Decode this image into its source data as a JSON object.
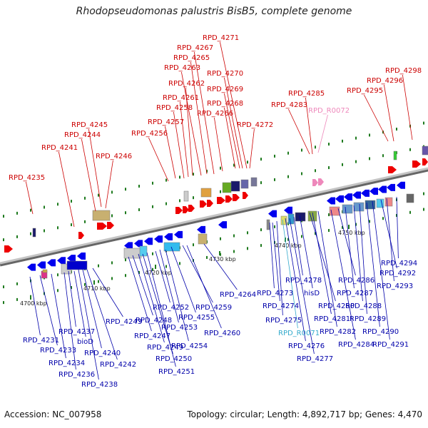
{
  "title": "Rhodopseudomonas palustris BisB5, complete genome",
  "accession": "Accession: NC_007958",
  "topology": "Topology: circular; Length: 4,892,717 bp; Genes: 4,470",
  "colors": {
    "forward_label": "#cc0000",
    "reverse_label": "#0000aa",
    "rna_forward_label": "#ee88bb",
    "rna_reverse_label": "#33aacc",
    "backbone": "#999999"
  },
  "scale_labels": [
    "4700 kbp",
    "4710 kbp",
    "4720 kbp",
    "4730 kbp",
    "4740 kbp",
    "4750 kbp"
  ],
  "top_labels": [
    "RPD_4235",
    "RPD_4241",
    "RPD_4244",
    "RPD_4245",
    "RPD_4246",
    "RPD_4256",
    "RPD_4257",
    "RPD_4258",
    "RPD_4261",
    "RPD_4262",
    "RPD_4263",
    "RPD_4265",
    "RPD_4267",
    "RPD_4271",
    "RPD_4270",
    "RPD_4269",
    "RPD_4268",
    "RPD_4266",
    "RPD_4272",
    "RPD_4283",
    "RPD_4285",
    "RPD_R0072",
    "RPD_4295",
    "RPD_4296",
    "RPD_4298"
  ],
  "bottom_labels": [
    "RPD_4231",
    "RPD_4233",
    "RPD_4234",
    "RPD_4236",
    "RPD_4237",
    "bioD",
    "RPD_4238",
    "RPD_4240",
    "RPD_4242",
    "RPD_4243",
    "RPD_4247",
    "RPD_4248",
    "RPD_4249",
    "RPD_4250",
    "RPD_4251",
    "RPD_4252",
    "RPD_4253",
    "RPD_4254",
    "RPD_4255",
    "RPD_4259",
    "RPD_4260",
    "RPD_4264",
    "RPD_4273",
    "RPD_4274",
    "RPD_4275",
    "RPD_R0071",
    "RPD_4276",
    "RPD_4277",
    "RPD_4278",
    "hisD",
    "RPD_4280",
    "RPD_4281",
    "RPD_4282",
    "RPD_4284",
    "RPD_4286",
    "RPD_4287",
    "RPD_4288",
    "RPD_4289",
    "RPD_4290",
    "RPD_4291",
    "RPD_4292",
    "RPD_4293",
    "RPD_4294"
  ]
}
